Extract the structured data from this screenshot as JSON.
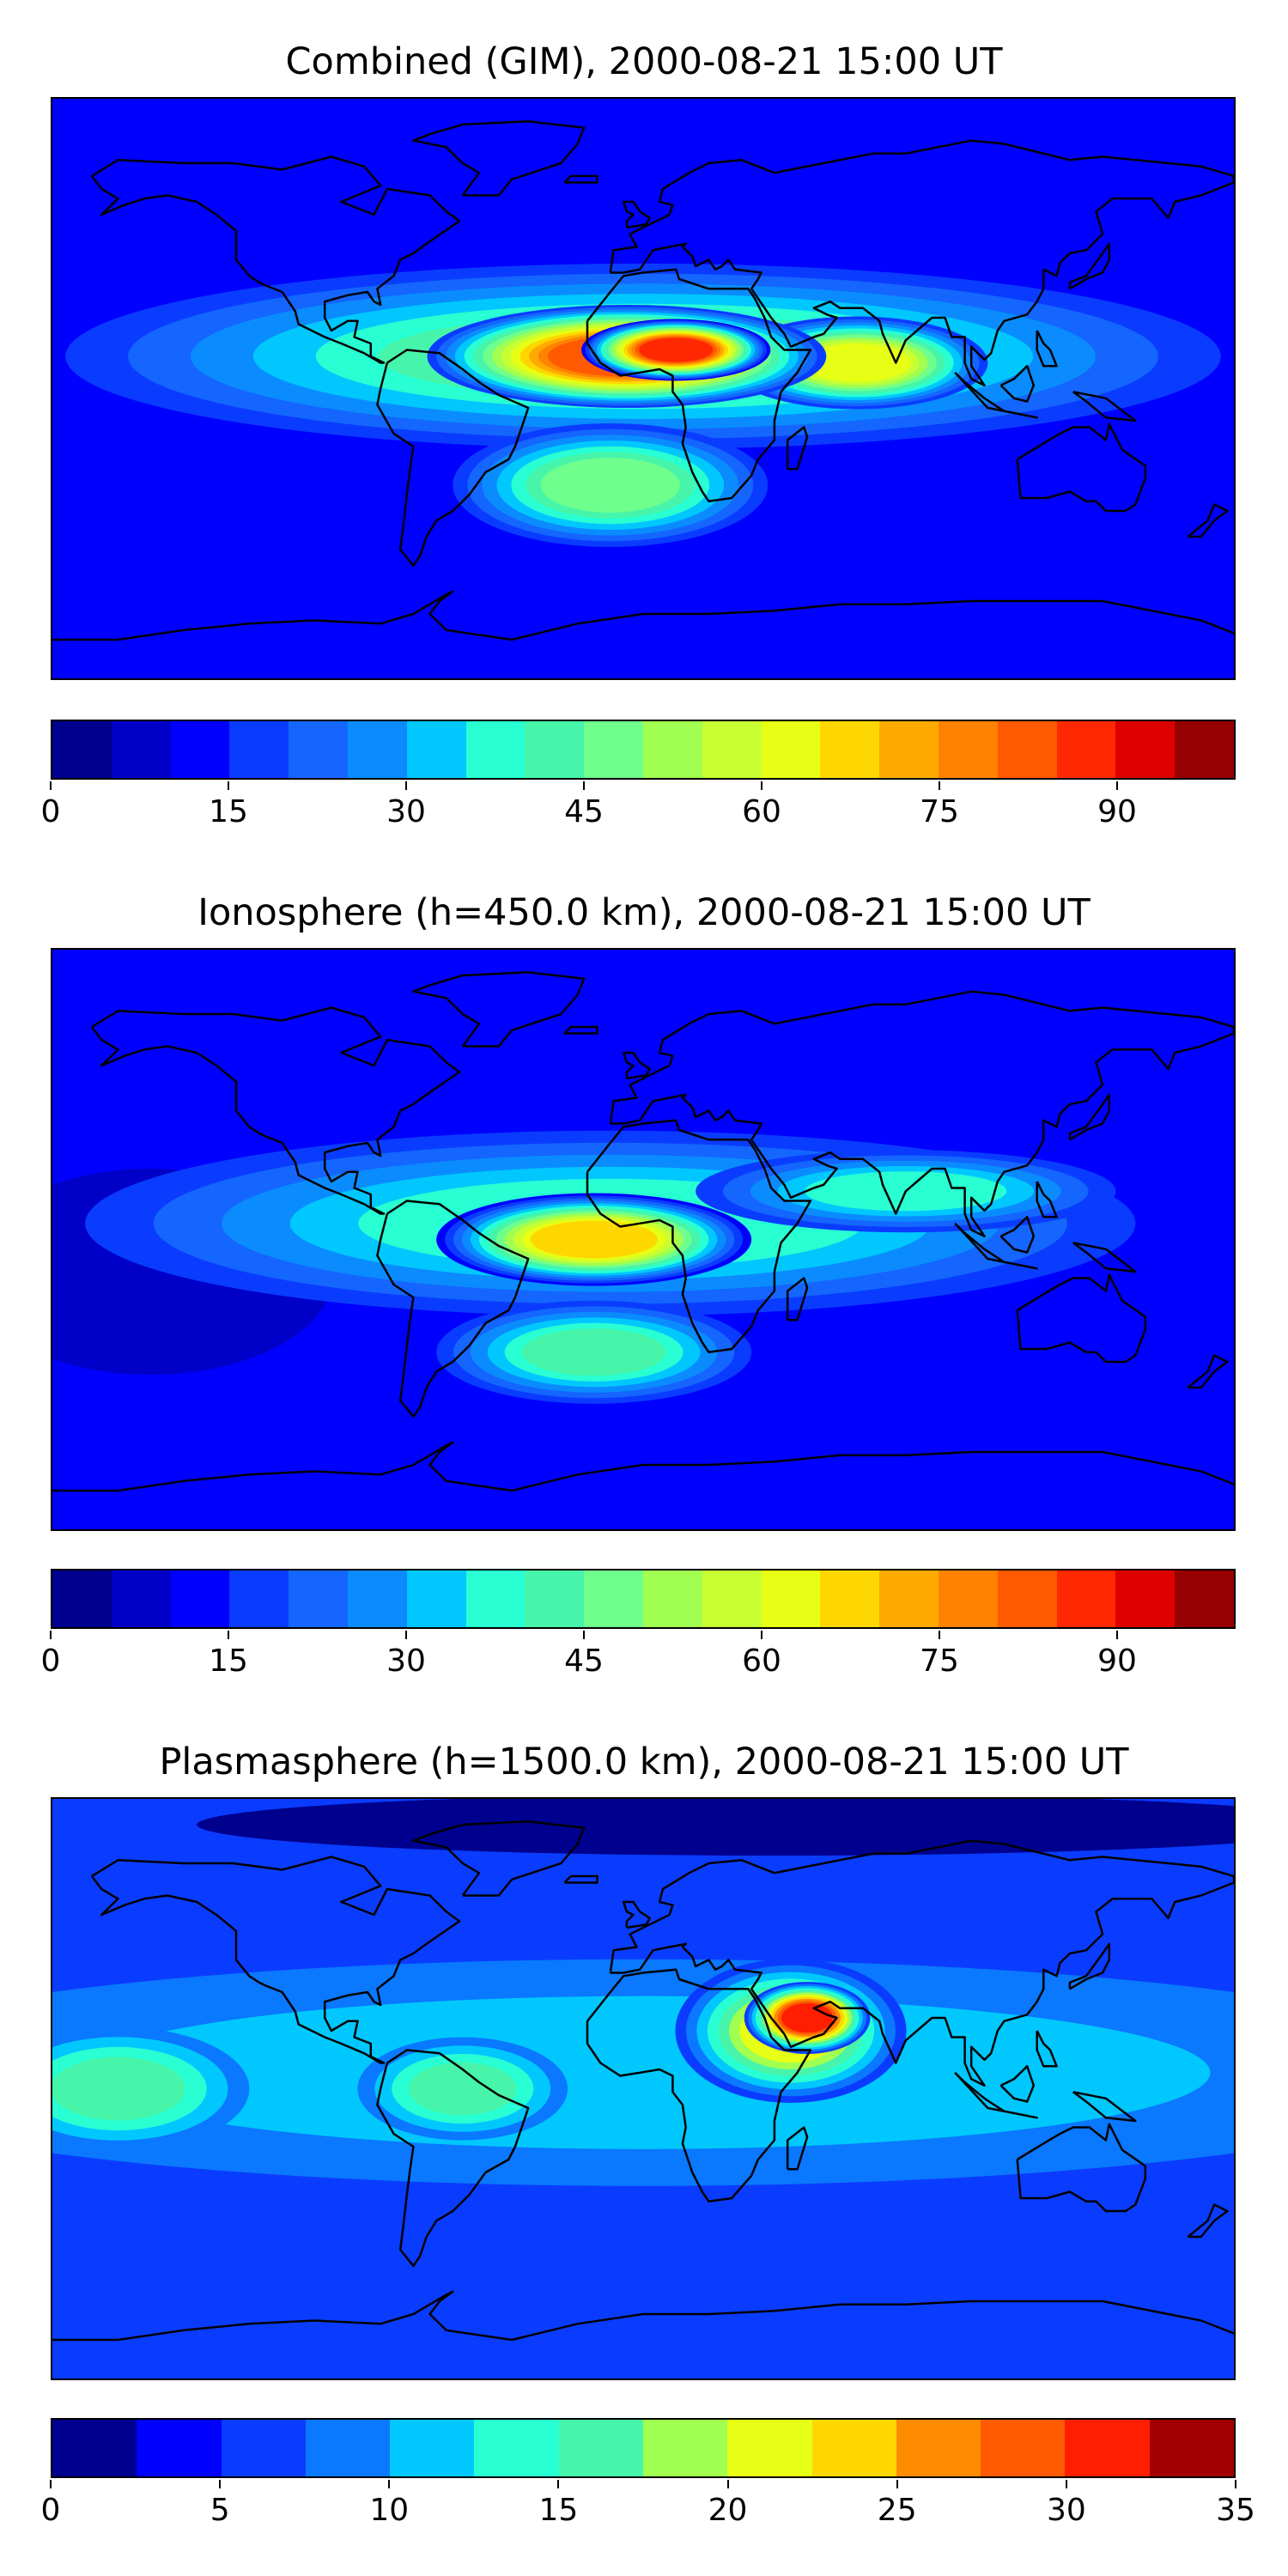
{
  "panels": [
    {
      "title": "Combined (GIM), 2000-08-21 15:00 UT",
      "colorbar": {
        "min": 0,
        "max": 100,
        "step": 5,
        "colors": [
          "#00008f",
          "#0000c8",
          "#0000ff",
          "#0a3cff",
          "#1466ff",
          "#0a8cff",
          "#00c8ff",
          "#28ffd2",
          "#46f5aa",
          "#6eff8c",
          "#a0ff50",
          "#c8ff32",
          "#e6ff14",
          "#ffd700",
          "#ffaa00",
          "#ff8200",
          "#ff5a00",
          "#ff2800",
          "#dc0000",
          "#960000"
        ],
        "ticks": [
          "0",
          "15",
          "30",
          "45",
          "60",
          "75",
          "90"
        ],
        "tick_values": [
          0,
          15,
          30,
          45,
          60,
          75,
          90
        ]
      },
      "features": [
        {
          "name": "equatorial-anomaly-band",
          "value": 40,
          "lon": 0,
          "lat": 10,
          "wlon": 110,
          "wlat": 18
        },
        {
          "name": "atlantic-africa-peak",
          "value": 80,
          "lon": -5,
          "lat": 10,
          "wlon": 38,
          "wlat": 10
        },
        {
          "name": "africa-core",
          "value": 88,
          "lon": 10,
          "lat": 12,
          "wlon": 18,
          "wlat": 6
        },
        {
          "name": "indian-ocean-extension",
          "value": 60,
          "lon": 65,
          "lat": 8,
          "wlon": 25,
          "wlat": 9
        },
        {
          "name": "south-atlantic-lobe",
          "value": 45,
          "lon": -10,
          "lat": -30,
          "wlon": 30,
          "wlat": 12
        },
        {
          "name": "polar-low-north",
          "value": 10,
          "lon": 60,
          "lat": 80,
          "wlon": 120,
          "wlat": 8
        },
        {
          "name": "polar-low-south",
          "value": 10,
          "lon": 60,
          "lat": -82,
          "wlon": 120,
          "wlat": 6
        }
      ]
    },
    {
      "title": "Ionosphere  (h=450.0 km), 2000-08-21 15:00 UT",
      "colorbar": {
        "min": 0,
        "max": 100,
        "step": 5,
        "colors": [
          "#00008f",
          "#0000c8",
          "#0000ff",
          "#0a3cff",
          "#1466ff",
          "#0a8cff",
          "#00c8ff",
          "#28ffd2",
          "#46f5aa",
          "#6eff8c",
          "#a0ff50",
          "#c8ff32",
          "#e6ff14",
          "#ffd700",
          "#ffaa00",
          "#ff8200",
          "#ff5a00",
          "#ff2800",
          "#dc0000",
          "#960000"
        ],
        "ticks": [
          "0",
          "15",
          "30",
          "45",
          "60",
          "75",
          "90"
        ],
        "tick_values": [
          0,
          15,
          30,
          45,
          60,
          75,
          90
        ]
      },
      "features": [
        {
          "name": "equatorial-anomaly-band",
          "value": 35,
          "lon": -10,
          "lat": 5,
          "wlon": 100,
          "wlat": 18
        },
        {
          "name": "atlantic-peak",
          "value": 68,
          "lon": -15,
          "lat": 0,
          "wlon": 30,
          "wlat": 9
        },
        {
          "name": "south-atlantic-lobe",
          "value": 40,
          "lon": -15,
          "lat": -35,
          "wlon": 30,
          "wlat": 10
        },
        {
          "name": "asia-band",
          "value": 35,
          "lon": 80,
          "lat": 15,
          "wlon": 40,
          "wlat": 8
        },
        {
          "name": "pacific-low",
          "value": 8,
          "lon": -150,
          "lat": -10,
          "wlon": 35,
          "wlat": 20
        }
      ]
    },
    {
      "title": "Plasmasphere (h=1500.0 km), 2000-08-21 15:00 UT",
      "colorbar": {
        "min": 0,
        "max": 35,
        "step": 2.5,
        "colors": [
          "#00008f",
          "#0000ff",
          "#0a3cff",
          "#0a78ff",
          "#00c8ff",
          "#28ffd2",
          "#46f5aa",
          "#a0ff50",
          "#e6ff14",
          "#ffd700",
          "#ff8c00",
          "#ff5a00",
          "#ff1e00",
          "#a00000"
        ],
        "ticks": [
          "0",
          "5",
          "10",
          "15",
          "20",
          "25",
          "30",
          "35"
        ],
        "tick_values": [
          0,
          5,
          10,
          15,
          20,
          25,
          30,
          35
        ]
      },
      "features": [
        {
          "name": "equatorial-band",
          "value": 11,
          "lon": 0,
          "lat": 5,
          "wlon": 160,
          "wlat": 22
        },
        {
          "name": "arabia-peak",
          "value": 32,
          "lon": 50,
          "lat": 22,
          "wlon": 12,
          "wlat": 7
        },
        {
          "name": "arabia-halo",
          "value": 22,
          "lon": 45,
          "lat": 18,
          "wlon": 22,
          "wlat": 14
        },
        {
          "name": "pacific-lobe",
          "value": 16,
          "lon": -160,
          "lat": 0,
          "wlon": 25,
          "wlat": 12
        },
        {
          "name": "south-america-lobe",
          "value": 15,
          "lon": -55,
          "lat": 0,
          "wlon": 20,
          "wlat": 10
        },
        {
          "name": "north-polar-low",
          "value": 2,
          "lon": 40,
          "lat": 82,
          "wlon": 110,
          "wlat": 6
        }
      ]
    }
  ]
}
